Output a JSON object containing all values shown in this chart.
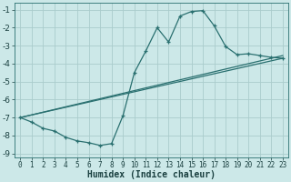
{
  "xlabel": "Humidex (Indice chaleur)",
  "xlim": [
    -0.5,
    23.5
  ],
  "ylim": [
    -9.2,
    -0.6
  ],
  "yticks": [
    -1,
    -2,
    -3,
    -4,
    -5,
    -6,
    -7,
    -8,
    -9
  ],
  "xticks": [
    0,
    1,
    2,
    3,
    4,
    5,
    6,
    7,
    8,
    9,
    10,
    11,
    12,
    13,
    14,
    15,
    16,
    17,
    18,
    19,
    20,
    21,
    22,
    23
  ],
  "bg_color": "#cce8e8",
  "grid_color": "#aacccc",
  "line_color": "#2a7070",
  "curve1_x": [
    0,
    1,
    2,
    3,
    4,
    5,
    6,
    7,
    8,
    9,
    10,
    11,
    12,
    13,
    14,
    15,
    16,
    17,
    18,
    19,
    20,
    21,
    22,
    23
  ],
  "curve1_y": [
    -7.0,
    -7.25,
    -7.6,
    -7.75,
    -8.1,
    -8.3,
    -8.4,
    -8.55,
    -8.45,
    -6.9,
    -4.5,
    -3.3,
    -2.0,
    -2.8,
    -1.35,
    -1.1,
    -1.05,
    -1.9,
    -3.05,
    -3.5,
    -3.45,
    -3.55,
    -3.65,
    -3.7
  ],
  "curve2_x": [
    0,
    23
  ],
  "curve2_y": [
    -7.0,
    -3.7
  ],
  "curve3_x": [
    0,
    23
  ],
  "curve3_y": [
    -7.0,
    -3.55
  ],
  "line_width": 0.9,
  "marker": "+",
  "marker_size": 3.5
}
